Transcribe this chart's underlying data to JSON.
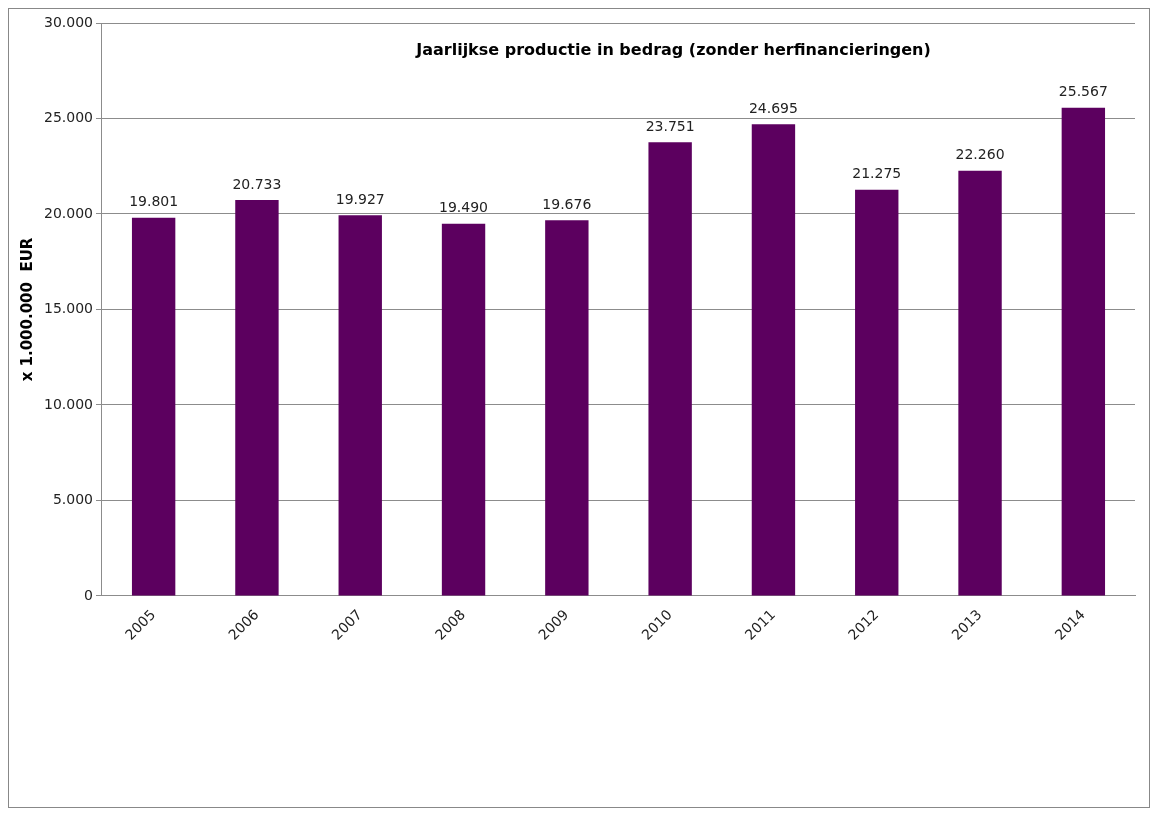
{
  "chart_data": {
    "type": "bar",
    "title": "Jaarlijkse productie in bedrag (zonder herfinancieringen)",
    "ylabel": "x 1.000.000  EUR",
    "categories": [
      "2005",
      "2006",
      "2007",
      "2008",
      "2009",
      "2010",
      "2011",
      "2012",
      "2013",
      "2014"
    ],
    "values": [
      19801,
      20733,
      19927,
      19490,
      19676,
      23751,
      24695,
      21275,
      22260,
      25567
    ],
    "value_labels": [
      "19.801",
      "20.733",
      "19.927",
      "19.490",
      "19.676",
      "23.751",
      "24.695",
      "21.275",
      "22.260",
      "25.567"
    ],
    "color": "#5c005f",
    "ylim": [
      0,
      30000
    ],
    "yticks": [
      {
        "value": 0,
        "label": "0"
      },
      {
        "value": 5000,
        "label": "5.000"
      },
      {
        "value": 10000,
        "label": "10.000"
      },
      {
        "value": 15000,
        "label": "15.000"
      },
      {
        "value": 20000,
        "label": "20.000"
      },
      {
        "value": 25000,
        "label": "25.000"
      },
      {
        "value": 30000,
        "label": "30.000"
      }
    ],
    "grid": "y",
    "legend": false
  }
}
